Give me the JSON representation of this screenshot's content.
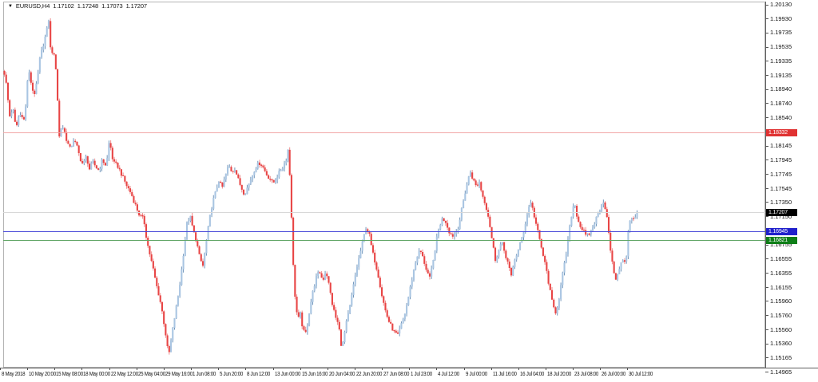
{
  "title": {
    "symbol": "EURUSD,H4",
    "open": "1.17102",
    "high": "1.17248",
    "low": "1.17073",
    "close": "1.17207"
  },
  "colors": {
    "background": "#ffffff",
    "bull_body": "#a9c5e2",
    "bull_wick": "#7095ba",
    "bear_body": "#e84545",
    "bear_wick": "#ef8f8f",
    "border": "#b4b4b4",
    "axis_line": "#606060",
    "axis_text": "#111111",
    "resistance_line": "#f2a6a6",
    "resistance_label_bg": "#e03232",
    "bid_line": "#d8d8d8",
    "bid_label_bg": "#000000",
    "support_blue_line": "#4848d8",
    "support_blue_label_bg": "#2020cc",
    "support_green_line": "#63a768",
    "support_green_label_bg": "#0e7e17"
  },
  "price_axis": {
    "ticks": [
      "1.20130",
      "1.19930",
      "1.19735",
      "1.19535",
      "1.19335",
      "1.19135",
      "1.18940",
      "1.18740",
      "1.18540",
      "1.18340",
      "1.18145",
      "1.17945",
      "1.17745",
      "1.17545",
      "1.17350",
      "1.17150",
      "1.16950",
      "1.16755",
      "1.16555",
      "1.16355",
      "1.16155",
      "1.15960",
      "1.15760",
      "1.15560",
      "1.15360",
      "1.15165",
      "1.14965"
    ]
  },
  "time_axis": {
    "labels": [
      "8 May 2018",
      "10 May 20:00",
      "15 May 08:00",
      "18 May 00:00",
      "22 May 12:00",
      "25 May 04:00",
      "29 May 16:00",
      "1 Jun 08:00",
      "5 Jun 20:00",
      "8 Jun 12:00",
      "13 Jun 00:00",
      "15 Jun 16:00",
      "20 Jun 04:00",
      "22 Jun 20:00",
      "27 Jun 08:00",
      "1 Jul 23:00",
      "4 Jul 12:00",
      "9 Jul 00:00",
      "11 Jul 16:00",
      "16 Jul 04:00",
      "18 Jul 20:00",
      "23 Jul 08:00",
      "26 Jul 00:00",
      "30 Jul 12:00"
    ]
  },
  "levels": [
    {
      "id": "resistance-red",
      "price": 1.18332,
      "label": "1.18332",
      "line_color": "#f2a6a6",
      "label_bg": "#e03232"
    },
    {
      "id": "bid",
      "price": 1.17207,
      "label": "1.17207",
      "line_color": "#d8d8d8",
      "label_bg": "#000000"
    },
    {
      "id": "support-blue",
      "price": 1.16945,
      "label": "1.16945",
      "line_color": "#4848d8",
      "label_bg": "#2020cc"
    },
    {
      "id": "support-green",
      "price": 1.16821,
      "label": "1.16821",
      "line_color": "#63a768",
      "label_bg": "#0e7e17"
    }
  ],
  "chart_data": {
    "type": "candlestick",
    "symbol": "EURUSD",
    "timeframe": "H4",
    "title": "EURUSD,H4 1.17102 1.17248 1.17073 1.17207",
    "current_bar": {
      "open": 1.17102,
      "high": 1.17248,
      "low": 1.17073,
      "close": 1.17207
    },
    "y_axis": {
      "min": 1.14965,
      "max": 1.2013,
      "tick_step": 0.002
    },
    "x_axis": {
      "start": "8 May 2018",
      "end": "30 Jul 12:00",
      "bar_interval_hours": 4,
      "bars_approx": 358
    },
    "grid": "off",
    "levels": {
      "resistance": 1.18332,
      "bid": 1.17207,
      "support_blue": 1.16945,
      "support_green": 1.16821
    },
    "swing_points": {
      "high_21_may": 1.1995,
      "low_29_may": 1.1508,
      "high_14_jun_spike": 1.1812,
      "low_21_jun": 1.1515,
      "low_27_jun": 1.1538,
      "high_9_jul": 1.1787,
      "low_26_jul": 1.1621
    },
    "path": [
      [
        5,
        1.192
      ],
      [
        8,
        1.19
      ],
      [
        12,
        1.1856
      ],
      [
        16,
        1.1868
      ],
      [
        20,
        1.1838
      ],
      [
        23,
        1.1855
      ],
      [
        27,
        1.186
      ],
      [
        31,
        1.1848
      ],
      [
        34,
        1.1905
      ],
      [
        37,
        1.1918
      ],
      [
        40,
        1.1895
      ],
      [
        43,
        1.1888
      ],
      [
        46,
        1.1902
      ],
      [
        50,
        1.1938
      ],
      [
        54,
        1.1956
      ],
      [
        58,
        1.1974
      ],
      [
        61,
        1.1992
      ],
      [
        63,
        1.1952
      ],
      [
        66,
        1.1946
      ],
      [
        69,
        1.1936
      ],
      [
        71,
        1.1908
      ],
      [
        74,
        1.1826
      ],
      [
        77,
        1.1843
      ],
      [
        80,
        1.1838
      ],
      [
        84,
        1.182
      ],
      [
        88,
        1.181
      ],
      [
        92,
        1.1823
      ],
      [
        96,
        1.1815
      ],
      [
        100,
        1.1798
      ],
      [
        104,
        1.1788
      ],
      [
        108,
        1.18
      ],
      [
        112,
        1.1782
      ],
      [
        116,
        1.1792
      ],
      [
        120,
        1.1785
      ],
      [
        124,
        1.178
      ],
      [
        128,
        1.1795
      ],
      [
        132,
        1.1788
      ],
      [
        135,
        1.18
      ],
      [
        137,
        1.1826
      ],
      [
        140,
        1.18
      ],
      [
        143,
        1.179
      ],
      [
        147,
        1.1787
      ],
      [
        152,
        1.1775
      ],
      [
        158,
        1.176
      ],
      [
        164,
        1.1748
      ],
      [
        170,
        1.173
      ],
      [
        175,
        1.1716
      ],
      [
        180,
        1.1712
      ],
      [
        184,
        1.168
      ],
      [
        188,
        1.166
      ],
      [
        192,
        1.164
      ],
      [
        196,
        1.1618
      ],
      [
        200,
        1.16
      ],
      [
        204,
        1.1575
      ],
      [
        208,
        1.1545
      ],
      [
        211,
        1.1518
      ],
      [
        214,
        1.154
      ],
      [
        218,
        1.157
      ],
      [
        222,
        1.1597
      ],
      [
        226,
        1.1627
      ],
      [
        230,
        1.1667
      ],
      [
        234,
        1.1705
      ],
      [
        238,
        1.1716
      ],
      [
        242,
        1.1695
      ],
      [
        246,
        1.168
      ],
      [
        250,
        1.1657
      ],
      [
        254,
        1.1646
      ],
      [
        258,
        1.1677
      ],
      [
        262,
        1.171
      ],
      [
        266,
        1.1735
      ],
      [
        270,
        1.175
      ],
      [
        274,
        1.1766
      ],
      [
        278,
        1.1755
      ],
      [
        282,
        1.1772
      ],
      [
        286,
        1.1787
      ],
      [
        290,
        1.1779
      ],
      [
        294,
        1.1783
      ],
      [
        298,
        1.1768
      ],
      [
        302,
        1.1756
      ],
      [
        306,
        1.1747
      ],
      [
        310,
        1.1757
      ],
      [
        314,
        1.1768
      ],
      [
        318,
        1.178
      ],
      [
        322,
        1.1788
      ],
      [
        326,
        1.1791
      ],
      [
        330,
        1.1783
      ],
      [
        334,
        1.1774
      ],
      [
        338,
        1.1768
      ],
      [
        342,
        1.1762
      ],
      [
        346,
        1.177
      ],
      [
        350,
        1.1778
      ],
      [
        354,
        1.1785
      ],
      [
        358,
        1.1795
      ],
      [
        361,
        1.1812
      ],
      [
        364,
        1.1745
      ],
      [
        367,
        1.1648
      ],
      [
        370,
        1.1592
      ],
      [
        373,
        1.157
      ],
      [
        376,
        1.1578
      ],
      [
        379,
        1.1558
      ],
      [
        382,
        1.1548
      ],
      [
        385,
        1.1565
      ],
      [
        388,
        1.1588
      ],
      [
        392,
        1.1612
      ],
      [
        396,
        1.163
      ],
      [
        400,
        1.1638
      ],
      [
        404,
        1.1625
      ],
      [
        408,
        1.164
      ],
      [
        412,
        1.1618
      ],
      [
        416,
        1.1592
      ],
      [
        420,
        1.1574
      ],
      [
        424,
        1.1562
      ],
      [
        428,
        1.1528
      ],
      [
        431,
        1.155
      ],
      [
        434,
        1.1568
      ],
      [
        438,
        1.1588
      ],
      [
        442,
        1.1615
      ],
      [
        446,
        1.164
      ],
      [
        450,
        1.166
      ],
      [
        454,
        1.168
      ],
      [
        458,
        1.17
      ],
      [
        462,
        1.1692
      ],
      [
        466,
        1.1666
      ],
      [
        470,
        1.165
      ],
      [
        474,
        1.163
      ],
      [
        478,
        1.1605
      ],
      [
        482,
        1.1585
      ],
      [
        486,
        1.157
      ],
      [
        490,
        1.156
      ],
      [
        494,
        1.1552
      ],
      [
        498,
        1.1548
      ],
      [
        502,
        1.1562
      ],
      [
        506,
        1.1575
      ],
      [
        510,
        1.1595
      ],
      [
        514,
        1.1618
      ],
      [
        518,
        1.164
      ],
      [
        522,
        1.166
      ],
      [
        526,
        1.1668
      ],
      [
        530,
        1.1655
      ],
      [
        534,
        1.164
      ],
      [
        538,
        1.1628
      ],
      [
        542,
        1.165
      ],
      [
        546,
        1.168
      ],
      [
        550,
        1.1702
      ],
      [
        554,
        1.1713
      ],
      [
        558,
        1.1708
      ],
      [
        562,
        1.1695
      ],
      [
        566,
        1.1688
      ],
      [
        570,
        1.1692
      ],
      [
        574,
        1.1702
      ],
      [
        578,
        1.1725
      ],
      [
        582,
        1.1748
      ],
      [
        586,
        1.1768
      ],
      [
        589,
        1.1778
      ],
      [
        592,
        1.1768
      ],
      [
        596,
        1.1758
      ],
      [
        600,
        1.1764
      ],
      [
        604,
        1.1745
      ],
      [
        608,
        1.1732
      ],
      [
        612,
        1.1712
      ],
      [
        616,
        1.1682
      ],
      [
        620,
        1.1655
      ],
      [
        624,
        1.1667
      ],
      [
        628,
        1.168
      ],
      [
        632,
        1.1664
      ],
      [
        636,
        1.165
      ],
      [
        640,
        1.163
      ],
      [
        644,
        1.1655
      ],
      [
        648,
        1.1665
      ],
      [
        652,
        1.168
      ],
      [
        656,
        1.1697
      ],
      [
        660,
        1.1718
      ],
      [
        664,
        1.1738
      ],
      [
        668,
        1.172
      ],
      [
        672,
        1.17
      ],
      [
        676,
        1.168
      ],
      [
        680,
        1.166
      ],
      [
        684,
        1.164
      ],
      [
        688,
        1.1614
      ],
      [
        692,
        1.159
      ],
      [
        696,
        1.158
      ],
      [
        700,
        1.1602
      ],
      [
        704,
        1.1632
      ],
      [
        708,
        1.1657
      ],
      [
        712,
        1.169
      ],
      [
        716,
        1.1722
      ],
      [
        719,
        1.1736
      ],
      [
        722,
        1.1718
      ],
      [
        726,
        1.1702
      ],
      [
        730,
        1.1696
      ],
      [
        734,
        1.1686
      ],
      [
        738,
        1.1692
      ],
      [
        742,
        1.17
      ],
      [
        746,
        1.1712
      ],
      [
        750,
        1.1722
      ],
      [
        754,
        1.1738
      ],
      [
        757,
        1.1732
      ],
      [
        760,
        1.1712
      ],
      [
        763,
        1.168
      ],
      [
        766,
        1.1652
      ],
      [
        769,
        1.1635
      ],
      [
        772,
        1.1625
      ],
      [
        775,
        1.1642
      ],
      [
        778,
        1.1655
      ],
      [
        781,
        1.165
      ],
      [
        784,
        1.1655
      ],
      [
        787,
        1.1705
      ],
      [
        790,
        1.171
      ],
      [
        793,
        1.1713
      ],
      [
        796,
        1.1716
      ],
      [
        799,
        1.17207
      ]
    ]
  }
}
